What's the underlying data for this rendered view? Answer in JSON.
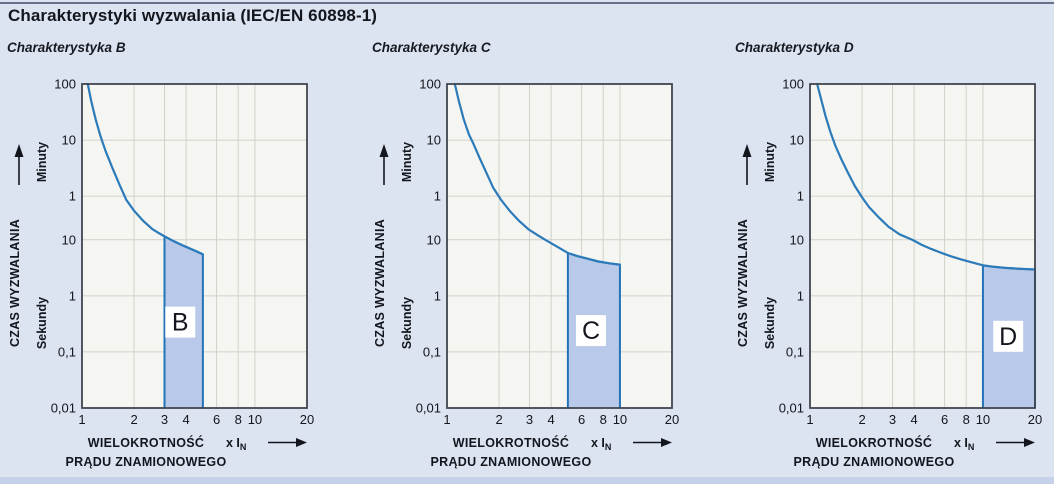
{
  "title": "Charakterystyki wyzwalania (IEC/EN 60898-1)",
  "colors": {
    "page_bg": "#dce4f2",
    "plot_bg": "#f5f5f1",
    "grid": "#d2d2cc",
    "plot_border": "#40454e",
    "curve": "#2b7ab9",
    "band_fill": "#b9c9e9",
    "band_border": "#2273b8",
    "text": "#14161e",
    "top_line": "#67718a",
    "bottom_bar": "#c6d2ea",
    "label_box_bg": "#ffffff"
  },
  "axis": {
    "y_label": "CZAS WYZWALANIA",
    "y_arrow_icon": "up-arrow",
    "y_unit_upper": "Minuty",
    "y_unit_lower": "Sekundy",
    "x_label_line1": "WIELOKROTNOŚĆ",
    "x_multiplier": "x I",
    "x_multiplier_sub": "N",
    "x_arrow_icon": "right-arrow",
    "x_label_line2": "PRĄDU ZNAMIONOWEGO",
    "xlim": [
      1,
      20
    ],
    "ylim_seconds": [
      0.01,
      6000
    ],
    "grid": true,
    "y_ticks": [
      {
        "label": "100",
        "seconds": 6000
      },
      {
        "label": "10",
        "seconds": 600
      },
      {
        "label": "1",
        "seconds": 60
      },
      {
        "label": "10",
        "seconds": 10
      },
      {
        "label": "1",
        "seconds": 1
      },
      {
        "label": "0,1",
        "seconds": 0.1
      },
      {
        "label": "0,01",
        "seconds": 0.01
      }
    ],
    "x_ticks": [
      {
        "label": "1",
        "value": 1
      },
      {
        "label": "2",
        "value": 2
      },
      {
        "label": "3",
        "value": 3
      },
      {
        "label": "4",
        "value": 4
      },
      {
        "label": "6",
        "value": 6
      },
      {
        "label": "8",
        "value": 8
      },
      {
        "label": "10",
        "value": 10
      },
      {
        "label": "20",
        "value": 20
      }
    ],
    "x_gridlines": [
      2,
      3,
      4,
      6,
      8,
      10
    ],
    "y_gridlines_seconds": [
      600,
      60,
      10,
      1,
      0.1
    ]
  },
  "chart_data": [
    {
      "type": "line",
      "subtitle": "Charakterystyka B",
      "band": {
        "label": "B",
        "from": 3,
        "to": 5
      },
      "label_pos": {
        "x": 3.7,
        "t": 0.34
      },
      "curve": [
        [
          1.08,
          6000
        ],
        [
          1.13,
          3000
        ],
        [
          1.2,
          1400
        ],
        [
          1.28,
          700
        ],
        [
          1.37,
          380
        ],
        [
          1.5,
          190
        ],
        [
          1.65,
          95
        ],
        [
          1.8,
          52
        ],
        [
          2.0,
          33
        ],
        [
          2.25,
          22
        ],
        [
          2.55,
          15.5
        ],
        [
          2.8,
          13
        ],
        [
          3.0,
          11.5
        ],
        [
          3.4,
          9.4
        ],
        [
          3.8,
          8.0
        ],
        [
          4.2,
          7.0
        ],
        [
          4.6,
          6.2
        ],
        [
          5.0,
          5.5
        ]
      ]
    },
    {
      "type": "line",
      "subtitle": "Charakterystyka C",
      "band": {
        "label": "C",
        "from": 5,
        "to": 10
      },
      "label_pos": {
        "x": 6.8,
        "t": 0.24
      },
      "curve": [
        [
          1.11,
          6000
        ],
        [
          1.17,
          3000
        ],
        [
          1.25,
          1400
        ],
        [
          1.34,
          750
        ],
        [
          1.42,
          520
        ],
        [
          1.55,
          280
        ],
        [
          1.7,
          150
        ],
        [
          1.85,
          85
        ],
        [
          2.05,
          52
        ],
        [
          2.3,
          33
        ],
        [
          2.6,
          22
        ],
        [
          2.95,
          15.5
        ],
        [
          3.35,
          12
        ],
        [
          3.7,
          10
        ],
        [
          4.1,
          8.3
        ],
        [
          4.55,
          6.9
        ],
        [
          5.0,
          5.8
        ],
        [
          5.7,
          5.1
        ],
        [
          6.5,
          4.6
        ],
        [
          7.5,
          4.1
        ],
        [
          8.7,
          3.8
        ],
        [
          10.0,
          3.6
        ]
      ]
    },
    {
      "type": "line",
      "subtitle": "Charakterystyka D",
      "band": {
        "label": "D",
        "from": 10,
        "to": 20
      },
      "label_pos": {
        "x": 14,
        "t": 0.19
      },
      "curve": [
        [
          1.1,
          6000
        ],
        [
          1.16,
          3200
        ],
        [
          1.23,
          1600
        ],
        [
          1.31,
          850
        ],
        [
          1.4,
          480
        ],
        [
          1.52,
          270
        ],
        [
          1.67,
          150
        ],
        [
          1.82,
          90
        ],
        [
          2.0,
          57
        ],
        [
          2.2,
          38
        ],
        [
          2.5,
          25
        ],
        [
          2.85,
          17
        ],
        [
          3.3,
          12.5
        ],
        [
          3.9,
          10
        ],
        [
          4.4,
          8.2
        ],
        [
          5.0,
          6.9
        ],
        [
          5.7,
          5.9
        ],
        [
          6.5,
          5.1
        ],
        [
          7.4,
          4.5
        ],
        [
          8.5,
          4.0
        ],
        [
          10.0,
          3.5
        ],
        [
          11.5,
          3.3
        ],
        [
          13.5,
          3.15
        ],
        [
          16.0,
          3.05
        ],
        [
          18.0,
          3.0
        ],
        [
          20.0,
          2.95
        ]
      ]
    }
  ]
}
